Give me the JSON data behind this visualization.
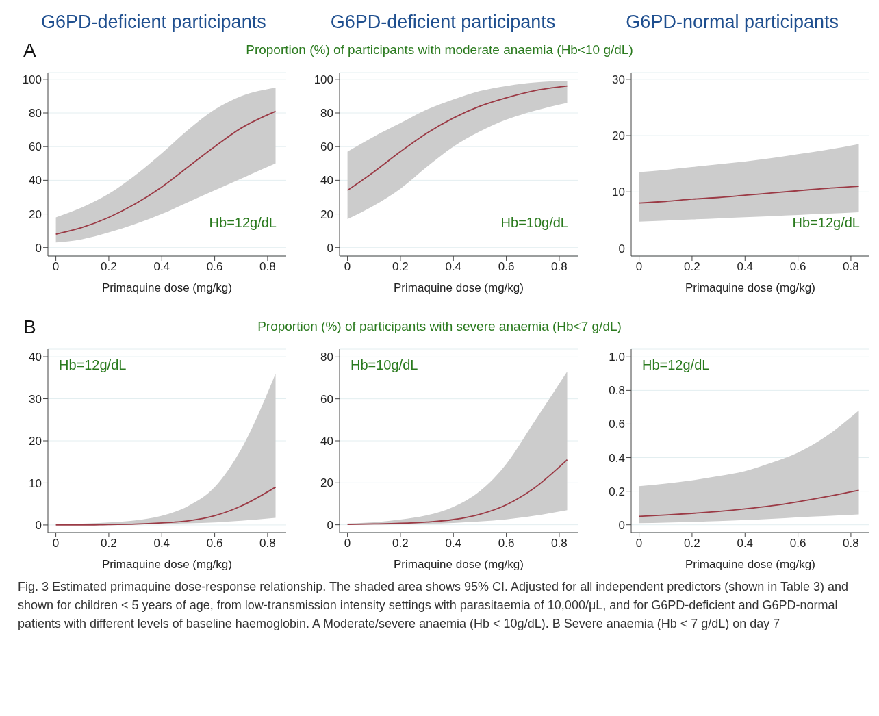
{
  "chart_data": [
    {
      "type": "line",
      "title": "G6PD-deficient participants",
      "xlabel": "Primaquine dose (mg/kg)",
      "annotations": [
        "A",
        "Proportion (%) of participants with moderate anaemia (Hb<10 g/dL)",
        "Hb=12g/dL"
      ],
      "x": [
        0,
        0.1,
        0.2,
        0.3,
        0.4,
        0.5,
        0.6,
        0.7,
        0.83
      ],
      "xlim": [
        -0.03,
        0.87
      ],
      "xticks": [
        0,
        0.2,
        0.4,
        0.6,
        0.8
      ],
      "ylim": [
        -5,
        104
      ],
      "yticks": [
        0,
        20,
        40,
        60,
        80,
        100
      ],
      "grid": "y",
      "series": [
        {
          "color": "#9b3a45",
          "values": [
            8,
            12,
            18,
            26,
            36,
            48,
            60,
            71,
            81
          ],
          "lower": [
            3,
            5,
            9,
            14,
            20,
            27,
            34,
            41,
            50
          ],
          "upper": [
            18,
            24,
            32,
            43,
            56,
            70,
            82,
            90,
            95
          ]
        }
      ]
    },
    {
      "type": "line",
      "title": "G6PD-deficient participants",
      "xlabel": "Primaquine dose (mg/kg)",
      "annotations": [
        "Hb=10g/dL"
      ],
      "x": [
        0,
        0.1,
        0.2,
        0.3,
        0.4,
        0.5,
        0.6,
        0.7,
        0.83
      ],
      "xlim": [
        -0.03,
        0.87
      ],
      "xticks": [
        0,
        0.2,
        0.4,
        0.6,
        0.8
      ],
      "ylim": [
        -5,
        104
      ],
      "yticks": [
        0,
        20,
        40,
        60,
        80,
        100
      ],
      "grid": "y",
      "series": [
        {
          "color": "#9b3a45",
          "values": [
            34,
            45,
            57,
            68,
            77,
            84,
            89,
            93,
            96
          ],
          "lower": [
            17,
            25,
            35,
            48,
            60,
            69,
            76,
            81,
            86
          ],
          "upper": [
            57,
            66,
            74,
            82,
            88,
            93,
            96,
            98,
            99
          ]
        }
      ]
    },
    {
      "type": "line",
      "title": "G6PD-normal participants",
      "xlabel": "Primaquine dose (mg/kg)",
      "annotations": [
        "Hb=12g/dL"
      ],
      "x": [
        0,
        0.1,
        0.2,
        0.3,
        0.4,
        0.5,
        0.6,
        0.7,
        0.83
      ],
      "xlim": [
        -0.03,
        0.87
      ],
      "xticks": [
        0,
        0.2,
        0.4,
        0.6,
        0.8
      ],
      "ylim": [
        -1.4,
        31.2
      ],
      "yticks": [
        0,
        10,
        20,
        30
      ],
      "grid": "y",
      "series": [
        {
          "color": "#9b3a45",
          "values": [
            8,
            8.3,
            8.7,
            9,
            9.4,
            9.8,
            10.2,
            10.6,
            11
          ],
          "lower": [
            4.7,
            4.9,
            5.1,
            5.3,
            5.5,
            5.7,
            5.9,
            6.1,
            6.4
          ],
          "upper": [
            13.5,
            13.9,
            14.4,
            14.9,
            15.4,
            16,
            16.7,
            17.4,
            18.5
          ]
        }
      ]
    },
    {
      "type": "line",
      "xlabel": "Primaquine dose (mg/kg)",
      "annotations": [
        "B",
        "Proportion (%) of participants with severe anaemia (Hb<7 g/dL)",
        "Hb=12g/dL"
      ],
      "x": [
        0,
        0.1,
        0.2,
        0.3,
        0.4,
        0.5,
        0.6,
        0.7,
        0.83
      ],
      "xlim": [
        -0.03,
        0.87
      ],
      "xticks": [
        0,
        0.2,
        0.4,
        0.6,
        0.8
      ],
      "ylim": [
        -1.8,
        41.8
      ],
      "yticks": [
        0,
        10,
        20,
        30,
        40
      ],
      "grid": "y",
      "series": [
        {
          "color": "#9b3a45",
          "values": [
            0,
            0,
            0.1,
            0.2,
            0.5,
            1,
            2.2,
            4.5,
            9
          ],
          "lower": [
            0,
            0,
            0,
            0.1,
            0.2,
            0.4,
            0.6,
            1,
            1.7
          ],
          "upper": [
            0.1,
            0.3,
            0.6,
            1.1,
            2.2,
            4.5,
            9,
            18,
            36
          ]
        }
      ]
    },
    {
      "type": "line",
      "xlabel": "Primaquine dose (mg/kg)",
      "annotations": [
        "Hb=10g/dL"
      ],
      "x": [
        0,
        0.1,
        0.2,
        0.3,
        0.4,
        0.5,
        0.6,
        0.7,
        0.83
      ],
      "xlim": [
        -0.03,
        0.87
      ],
      "xticks": [
        0,
        0.2,
        0.4,
        0.6,
        0.8
      ],
      "ylim": [
        -3.7,
        83.7
      ],
      "yticks": [
        0,
        20,
        40,
        60,
        80
      ],
      "grid": "y",
      "series": [
        {
          "color": "#9b3a45",
          "values": [
            0.2,
            0.4,
            0.7,
            1.3,
            2.5,
            5,
            9.5,
            17,
            31
          ],
          "lower": [
            0,
            0.1,
            0.2,
            0.5,
            0.9,
            1.6,
            2.6,
            4.2,
            7
          ],
          "upper": [
            0.6,
            1.2,
            2.5,
            4.5,
            8.5,
            16,
            29,
            48,
            73
          ]
        }
      ]
    },
    {
      "type": "line",
      "xlabel": "Primaquine dose (mg/kg)",
      "annotations": [
        "Hb=12g/dL",
        "Fig. 3  Estimated primaquine dose-response relationship. The shaded area shows 95% CI. Adjusted for all independent predictors (shown in Table 3) and shown for children < 5 years of age, from low-transmission intensity settings with parasitaemia of 10,000/μL, and for G6PD-deficient and G6PD-normal patients with different levels of baseline haemoglobin. A Moderate/severe anaemia (Hb < 10g/dL). B Severe anaemia (Hb < 7 g/dL) on day 7"
      ],
      "x": [
        0,
        0.1,
        0.2,
        0.3,
        0.4,
        0.5,
        0.6,
        0.7,
        0.83
      ],
      "xlim": [
        -0.03,
        0.87
      ],
      "xticks": [
        0,
        0.2,
        0.4,
        0.6,
        0.8
      ],
      "ylim": [
        -0.046,
        1.046
      ],
      "yticks": [
        0,
        0.2,
        0.4,
        0.6,
        0.8,
        {
          "value": 1,
          "label": "1.0"
        }
      ],
      "grid": "y",
      "series": [
        {
          "color": "#9b3a45",
          "values": [
            0.05,
            0.058,
            0.068,
            0.08,
            0.095,
            0.113,
            0.137,
            0.165,
            0.205
          ],
          "lower": [
            0.01,
            0.013,
            0.017,
            0.022,
            0.028,
            0.035,
            0.045,
            0.052,
            0.062
          ],
          "upper": [
            0.23,
            0.245,
            0.265,
            0.29,
            0.32,
            0.37,
            0.43,
            0.52,
            0.68
          ]
        }
      ]
    }
  ]
}
